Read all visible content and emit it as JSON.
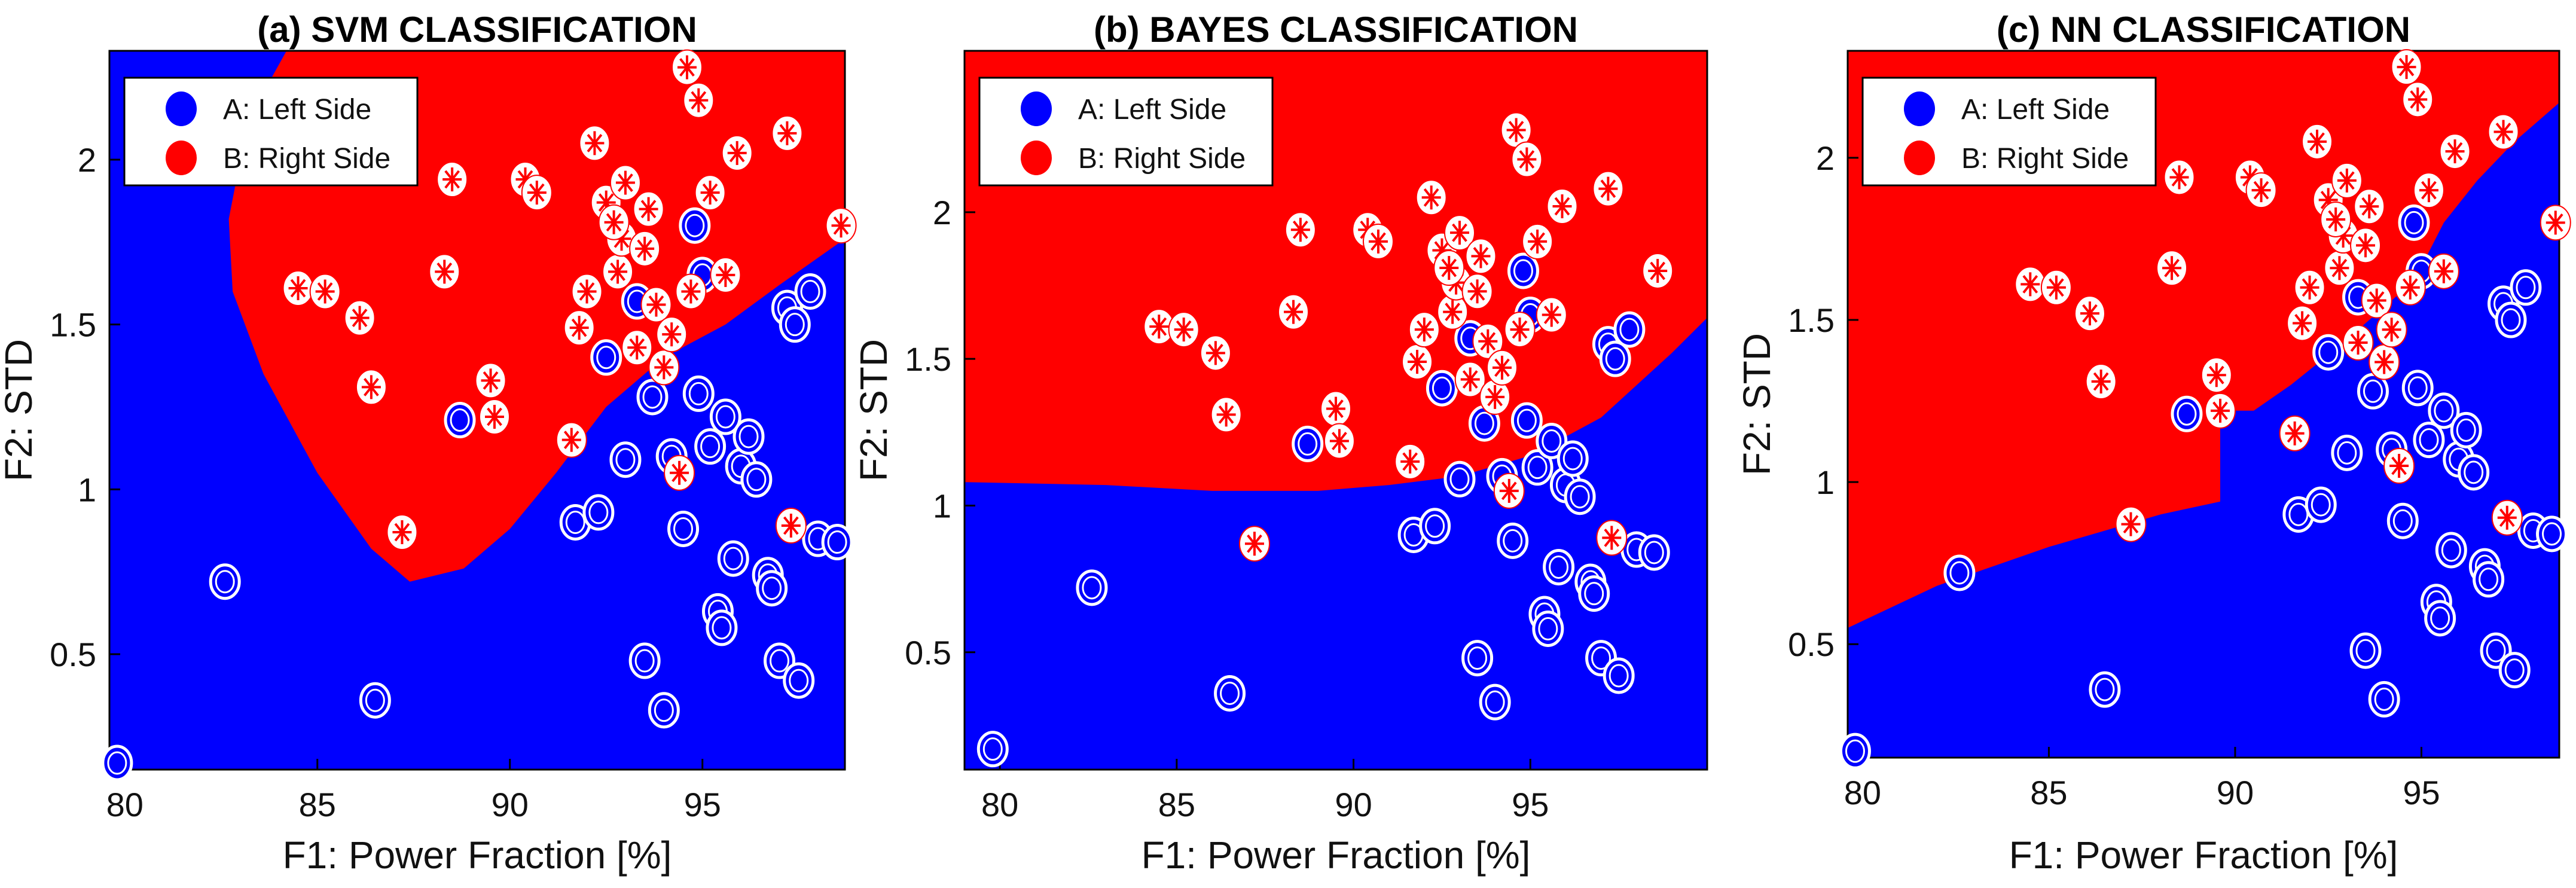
{
  "chart_data": [
    {
      "type": "scatter",
      "title": "(a) SVM CLASSIFICATION",
      "xlabel": "F1: Power Fraction [%]",
      "ylabel": "F2: STD",
      "xlim": [
        79.6,
        98.7
      ],
      "ylim": [
        0.15,
        2.33
      ],
      "xticks": [
        80,
        85,
        90,
        95
      ],
      "yticks": [
        0.5,
        1,
        1.5,
        2
      ],
      "legend_position": "top-left",
      "grid": false,
      "region_colors": {
        "A": "#0000ff",
        "B": "#ff0000"
      },
      "legend": [
        {
          "name": "A: Left Side",
          "color": "#0000ff"
        },
        {
          "name": "B: Right Side",
          "color": "#ff0000"
        }
      ],
      "boundary": [
        [
          84.2,
          2.33
        ],
        [
          83.2,
          2.12
        ],
        [
          82.7,
          1.82
        ],
        [
          82.8,
          1.6
        ],
        [
          83.6,
          1.35
        ],
        [
          85.0,
          1.05
        ],
        [
          86.4,
          0.82
        ],
        [
          87.4,
          0.72
        ],
        [
          88.8,
          0.76
        ],
        [
          90.0,
          0.88
        ],
        [
          91.2,
          1.05
        ],
        [
          92.5,
          1.25
        ],
        [
          94.0,
          1.4
        ],
        [
          95.6,
          1.5
        ],
        [
          97.0,
          1.62
        ],
        [
          98.7,
          1.76
        ]
      ]
    },
    {
      "type": "scatter",
      "title": "(b) BAYES CLASSIFICATION",
      "xlabel": "F1: Power Fraction [%]",
      "ylabel": "F2: STD",
      "xlim": [
        79.0,
        100.0
      ],
      "ylim": [
        0.1,
        2.55
      ],
      "xticks": [
        80,
        85,
        90,
        95
      ],
      "yticks": [
        0.5,
        1,
        1.5,
        2
      ],
      "legend_position": "top-left",
      "grid": false,
      "region_colors": {
        "A": "#0000ff",
        "B": "#ff0000"
      },
      "legend": [
        {
          "name": "A: Left Side",
          "color": "#0000ff"
        },
        {
          "name": "B: Right Side",
          "color": "#ff0000"
        }
      ],
      "boundary": [
        [
          79.0,
          1.08
        ],
        [
          83.0,
          1.07
        ],
        [
          86.0,
          1.05
        ],
        [
          89.0,
          1.05
        ],
        [
          91.0,
          1.07
        ],
        [
          93.0,
          1.1
        ],
        [
          95.0,
          1.17
        ],
        [
          97.0,
          1.3
        ],
        [
          99.0,
          1.52
        ],
        [
          100.0,
          1.64
        ]
      ]
    },
    {
      "type": "scatter",
      "title": "(c) NN CLASSIFICATION",
      "xlabel": "F1: Power Fraction [%]",
      "ylabel": "F2: STD",
      "xlim": [
        79.6,
        98.7
      ],
      "ylim": [
        0.15,
        2.33
      ],
      "xticks": [
        80,
        85,
        90,
        95
      ],
      "yticks": [
        0.5,
        1,
        1.5,
        2
      ],
      "legend_position": "top-left",
      "grid": false,
      "region_colors": {
        "A": "#0000ff",
        "B": "#ff0000"
      },
      "legend": [
        {
          "name": "A: Left Side",
          "color": "#0000ff"
        },
        {
          "name": "B: Right Side",
          "color": "#ff0000"
        }
      ],
      "boundary": [
        [
          79.6,
          0.55
        ],
        [
          82.0,
          0.68
        ],
        [
          85.0,
          0.8
        ],
        [
          88.0,
          0.9
        ],
        [
          89.6,
          0.94
        ],
        [
          89.6,
          1.22
        ],
        [
          90.5,
          1.22
        ],
        [
          91.5,
          1.3
        ],
        [
          92.8,
          1.42
        ],
        [
          93.8,
          1.52
        ],
        [
          94.8,
          1.62
        ],
        [
          95.6,
          1.8
        ],
        [
          96.5,
          1.93
        ],
        [
          97.5,
          2.05
        ],
        [
          98.7,
          2.17
        ]
      ]
    }
  ],
  "points_a": {
    "name": "A: Left Side",
    "x": [
      79.8,
      82.6,
      86.5,
      88.7,
      91.7,
      92.3,
      92.5,
      93.0,
      93.5,
      94.0,
      94.5,
      94.8,
      95.0,
      95.2,
      95.8,
      96.0,
      96.4,
      96.7,
      97.0,
      97.5,
      98.0,
      98.5,
      93.3,
      93.7,
      94.2,
      95.6,
      95.4,
      96.2,
      97.2,
      97.8,
      96.8,
      97.4,
      95.5,
      94.9
    ],
    "y": [
      0.17,
      0.72,
      0.36,
      1.21,
      0.9,
      0.93,
      1.4,
      1.09,
      0.48,
      0.33,
      0.88,
      1.8,
      1.65,
      1.13,
      0.79,
      1.07,
      1.03,
      0.74,
      0.48,
      0.42,
      0.85,
      0.84,
      1.57,
      1.28,
      1.1,
      1.22,
      0.63,
      1.16,
      1.55,
      1.6,
      0.7,
      1.5,
      0.58,
      1.29
    ]
  },
  "points_b": {
    "name": "B: Right Side",
    "x": [
      84.5,
      85.2,
      86.1,
      86.4,
      87.2,
      88.3,
      88.5,
      89.5,
      89.6,
      90.4,
      90.7,
      91.6,
      91.8,
      92.0,
      92.2,
      92.5,
      92.8,
      92.9,
      93.0,
      93.3,
      93.6,
      93.8,
      94.0,
      94.2,
      94.4,
      94.6,
      94.7,
      94.9,
      95.2,
      95.6,
      95.9,
      97.2,
      97.3,
      98.6,
      93.5,
      92.7
    ],
    "y": [
      1.61,
      1.6,
      1.52,
      1.31,
      0.87,
      1.66,
      1.94,
      1.33,
      1.22,
      1.94,
      1.9,
      1.15,
      1.49,
      1.6,
      2.05,
      1.87,
      1.66,
      1.76,
      1.93,
      1.43,
      1.85,
      1.56,
      1.37,
      1.47,
      1.05,
      2.28,
      1.6,
      2.18,
      1.9,
      1.65,
      2.02,
      2.08,
      0.89,
      1.8,
      1.73,
      1.81
    ]
  }
}
